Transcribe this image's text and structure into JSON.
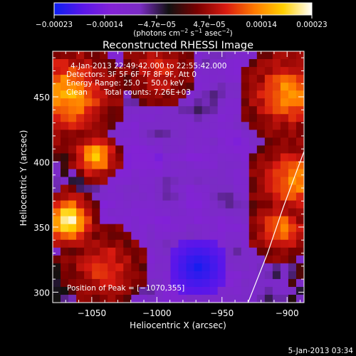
{
  "chart_data": {
    "type": "heatmap",
    "title": "Reconstructed RHESSI Image",
    "xlabel": "Heliocentric X (arcsec)",
    "ylabel": "Heliocentric Y (arcsec)",
    "xlim": [
      -1080,
      -887
    ],
    "ylim": [
      292,
      485
    ],
    "x_ticks": [
      -1050,
      -1000,
      -950,
      -900
    ],
    "x_tick_labels": [
      "−1050",
      "−1000",
      "−950",
      "−900"
    ],
    "y_ticks": [
      300,
      350,
      400,
      450
    ],
    "y_tick_labels": [
      "300",
      "350",
      "400",
      "450"
    ],
    "colorbar": {
      "range": [
        -0.00023,
        0.00023
      ],
      "ticks": [
        -0.00023,
        -0.00014,
        -4.7e-05,
        4.7e-05,
        0.00014,
        0.00023
      ],
      "tick_labels": [
        "−0.00023",
        "−0.00014",
        "−4.7e−05",
        "4.7e−05",
        "0.00014",
        "0.00023"
      ],
      "colors": [
        "#0b1ff0",
        "#5a16ea",
        "#8322d6",
        "#7a2cc4",
        "#111111",
        "#7a0000",
        "#d81a10",
        "#ff7a00",
        "#ffd000",
        "#ffffff"
      ]
    },
    "units": {
      "base": "(photons cm",
      "exp1": "−2",
      "mid": " s",
      "exp2": "−1",
      "mid2": " asec",
      "exp3": "−2",
      "end": ")"
    },
    "annotations": {
      "time_range": "4-Jan-2013 22:49:42.000 to 22:55:42.000",
      "detectors": "Detectors: 3F 5F 6F 7F 8F 9F, Att 0",
      "energy": "Energy Range: 25.0 − 50.0 keV",
      "method": "Clean",
      "counts": "Total counts: 7.26E+03",
      "peak": "Position of Peak = [−1070,355]"
    },
    "peak_position": [
      -1070,
      355
    ],
    "limb_curve": [
      [
        -930,
        292
      ],
      [
        -915,
        330
      ],
      [
        -903,
        365
      ],
      [
        -893,
        392
      ],
      [
        -887,
        408
      ]
    ]
  },
  "footer": {
    "timestamp": "5-Jan-2013 03:34"
  }
}
